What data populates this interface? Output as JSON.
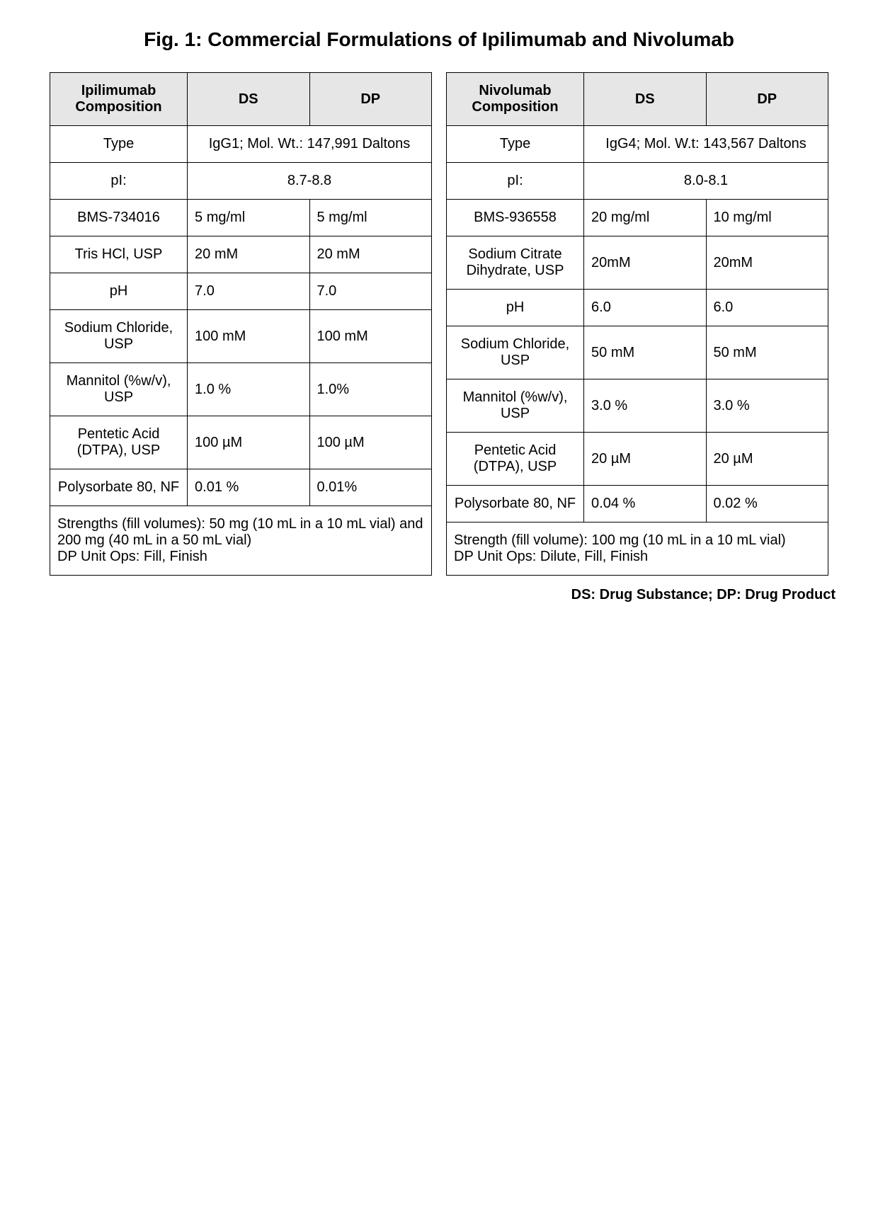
{
  "title": "Fig. 1:  Commercial Formulations of Ipilimumab and Nivolumab",
  "legend": "DS: Drug Substance;  DP: Drug Product",
  "shared_headers": {
    "ds": "DS",
    "dp": "DP"
  },
  "ipi": {
    "header_label": "Ipilimumab Composition",
    "rows": [
      {
        "label": "Type",
        "span": "IgG1; Mol. Wt.: 147,991 Daltons"
      },
      {
        "label": "pI:",
        "span": "8.7-8.8"
      },
      {
        "label": "BMS-734016",
        "ds": "5 mg/ml",
        "dp": "5 mg/ml"
      },
      {
        "label": "Tris HCl, USP",
        "ds": "20 mM",
        "dp": "20 mM"
      },
      {
        "label": "pH",
        "ds": "7.0",
        "dp": "7.0"
      },
      {
        "label": "Sodium Chloride, USP",
        "ds": "100 mM",
        "dp": "100 mM"
      },
      {
        "label": "Mannitol (%w/v), USP",
        "ds": "1.0 %",
        "dp": "1.0%"
      },
      {
        "label": "Pentetic Acid (DTPA), USP",
        "ds": "100 µM",
        "dp": "100 µM"
      },
      {
        "label": "Polysorbate 80, NF",
        "ds": "0.01 %",
        "dp": "0.01%"
      }
    ],
    "footer": "Strengths (fill volumes):  50 mg (10 mL in a 10 mL vial) and 200 mg (40 mL in a 50 mL vial)\nDP Unit Ops: Fill, Finish"
  },
  "nivo": {
    "header_label": "Nivolumab Composition",
    "rows": [
      {
        "label": "Type",
        "span": "IgG4; Mol. W.t: 143,567 Daltons"
      },
      {
        "label": "pI:",
        "span": "8.0-8.1"
      },
      {
        "label": "BMS-936558",
        "ds": "20 mg/ml",
        "dp": "10 mg/ml"
      },
      {
        "label": "Sodium Citrate Dihydrate, USP",
        "ds": "20mM",
        "dp": "20mM"
      },
      {
        "label": "pH",
        "ds": "6.0",
        "dp": "6.0"
      },
      {
        "label": "Sodium Chloride, USP",
        "ds": "50 mM",
        "dp": "50 mM"
      },
      {
        "label": "Mannitol (%w/v), USP",
        "ds": "3.0 %",
        "dp": "3.0 %"
      },
      {
        "label": "Pentetic Acid (DTPA), USP",
        "ds": "20 µM",
        "dp": "20 µM"
      },
      {
        "label": "Polysorbate 80, NF",
        "ds": "0.04 %",
        "dp": "0.02 %"
      }
    ],
    "footer": "Strength (fill volume):  100 mg (10 mL in a 10 mL vial)\nDP Unit Ops: Dilute, Fill, Finish"
  }
}
